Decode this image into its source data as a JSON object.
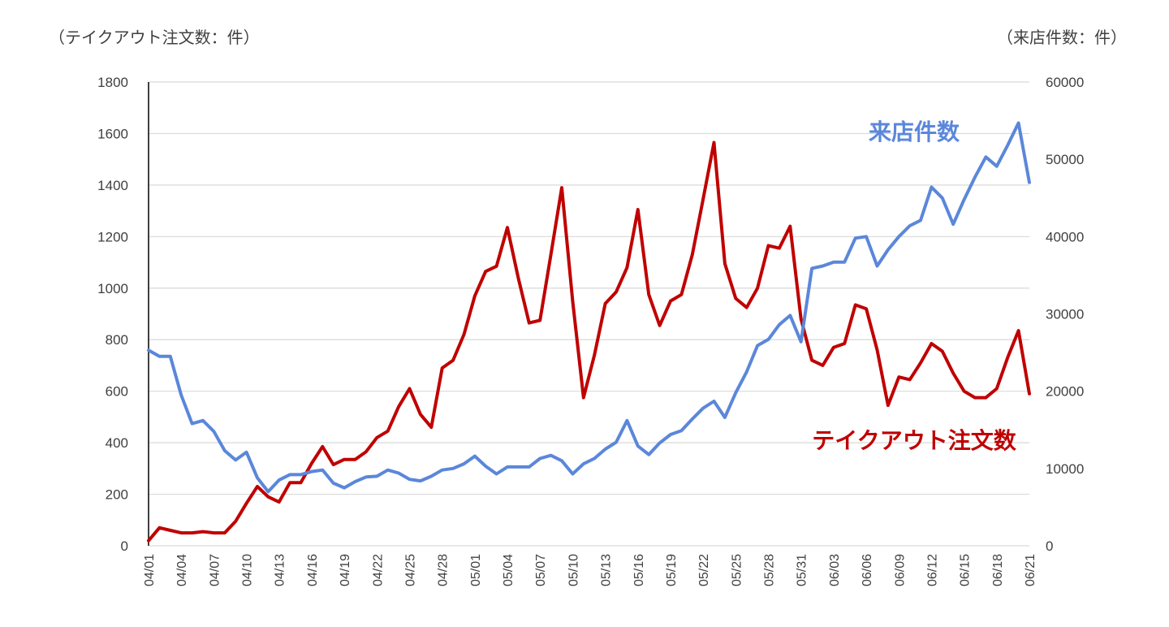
{
  "chart_data": {
    "type": "line",
    "left_axis_label": "（テイクアウト注文数：件）",
    "right_axis_label": "（来店件数：件）",
    "left_ylim": [
      0,
      1800
    ],
    "left_yticks": [
      "0",
      "200",
      "400",
      "600",
      "800",
      "1000",
      "1200",
      "1400",
      "1600",
      "1800"
    ],
    "right_ylim": [
      0,
      60000
    ],
    "right_yticks": [
      "0",
      "10000",
      "20000",
      "30000",
      "40000",
      "50000",
      "60000"
    ],
    "grid": true,
    "x": [
      "04/01",
      "04/02",
      "04/03",
      "04/04",
      "04/05",
      "04/06",
      "04/07",
      "04/08",
      "04/09",
      "04/10",
      "04/11",
      "04/12",
      "04/13",
      "04/14",
      "04/15",
      "04/16",
      "04/17",
      "04/18",
      "04/19",
      "04/20",
      "04/21",
      "04/22",
      "04/23",
      "04/24",
      "04/25",
      "04/26",
      "04/27",
      "04/28",
      "04/29",
      "04/30",
      "05/01",
      "05/02",
      "05/03",
      "05/04",
      "05/05",
      "05/06",
      "05/07",
      "05/08",
      "05/09",
      "05/10",
      "05/11",
      "05/12",
      "05/13",
      "05/14",
      "05/15",
      "05/16",
      "05/17",
      "05/18",
      "05/19",
      "05/20",
      "05/21",
      "05/22",
      "05/23",
      "05/24",
      "05/25",
      "05/26",
      "05/27",
      "05/28",
      "05/29",
      "05/30",
      "05/31",
      "06/01",
      "06/02",
      "06/03",
      "06/04",
      "06/05",
      "06/06",
      "06/07",
      "06/08",
      "06/09",
      "06/10",
      "06/11",
      "06/12",
      "06/13",
      "06/14",
      "06/15",
      "06/16",
      "06/17",
      "06/18",
      "06/19",
      "06/20",
      "06/21"
    ],
    "xtick_labels": [
      "04/01",
      "04/04",
      "04/07",
      "04/10",
      "04/13",
      "04/16",
      "04/19",
      "04/22",
      "04/25",
      "04/28",
      "05/01",
      "05/04",
      "05/07",
      "05/10",
      "05/13",
      "05/16",
      "05/19",
      "05/22",
      "05/25",
      "05/28",
      "05/31",
      "06/03",
      "06/06",
      "06/09",
      "06/12",
      "06/15",
      "06/18",
      "06/21"
    ],
    "series": [
      {
        "name": "テイクアウト注文数",
        "axis": "left",
        "color": "#C00000",
        "values": [
          20,
          70,
          60,
          50,
          50,
          55,
          50,
          50,
          95,
          165,
          230,
          190,
          170,
          245,
          245,
          320,
          385,
          315,
          335,
          335,
          365,
          420,
          445,
          540,
          610,
          510,
          460,
          690,
          720,
          820,
          970,
          1065,
          1085,
          1235,
          1040,
          865,
          875,
          1130,
          1390,
          950,
          575,
          740,
          940,
          985,
          1080,
          1305,
          975,
          855,
          950,
          975,
          1130,
          1345,
          1565,
          1095,
          960,
          925,
          1000,
          1165,
          1155,
          1240,
          880,
          720,
          700,
          770,
          785,
          935,
          920,
          760,
          545,
          655,
          645,
          710,
          785,
          755,
          670,
          600,
          575,
          575,
          610,
          730,
          835,
          590
        ]
      },
      {
        "name": "来店件数",
        "axis": "right",
        "color": "#5B87DA",
        "values": [
          25300,
          24500,
          24500,
          19500,
          15800,
          16200,
          14800,
          12300,
          11100,
          12100,
          8800,
          7000,
          8500,
          9200,
          9200,
          9600,
          9800,
          8100,
          7500,
          8300,
          8900,
          9000,
          9800,
          9400,
          8600,
          8400,
          9000,
          9800,
          10000,
          10600,
          11600,
          10300,
          9300,
          10200,
          10200,
          10200,
          11300,
          11700,
          11000,
          9300,
          10600,
          11300,
          12500,
          13400,
          16200,
          12900,
          11800,
          13300,
          14400,
          14900,
          16400,
          17800,
          18700,
          16600,
          19800,
          22500,
          25900,
          26700,
          28600,
          29800,
          26400,
          35900,
          36200,
          36700,
          36700,
          39800,
          40000,
          36200,
          38300,
          40000,
          41400,
          42100,
          46400,
          45000,
          41600,
          44800,
          47700,
          50300,
          49100,
          51800,
          54700,
          47000
        ]
      }
    ],
    "annotations": [
      {
        "text": "来店件数",
        "series": "来店件数",
        "color": "#5B87DA"
      },
      {
        "text": "テイクアウト注文数",
        "series": "テイクアウト注文数",
        "color": "#C00000"
      }
    ]
  }
}
